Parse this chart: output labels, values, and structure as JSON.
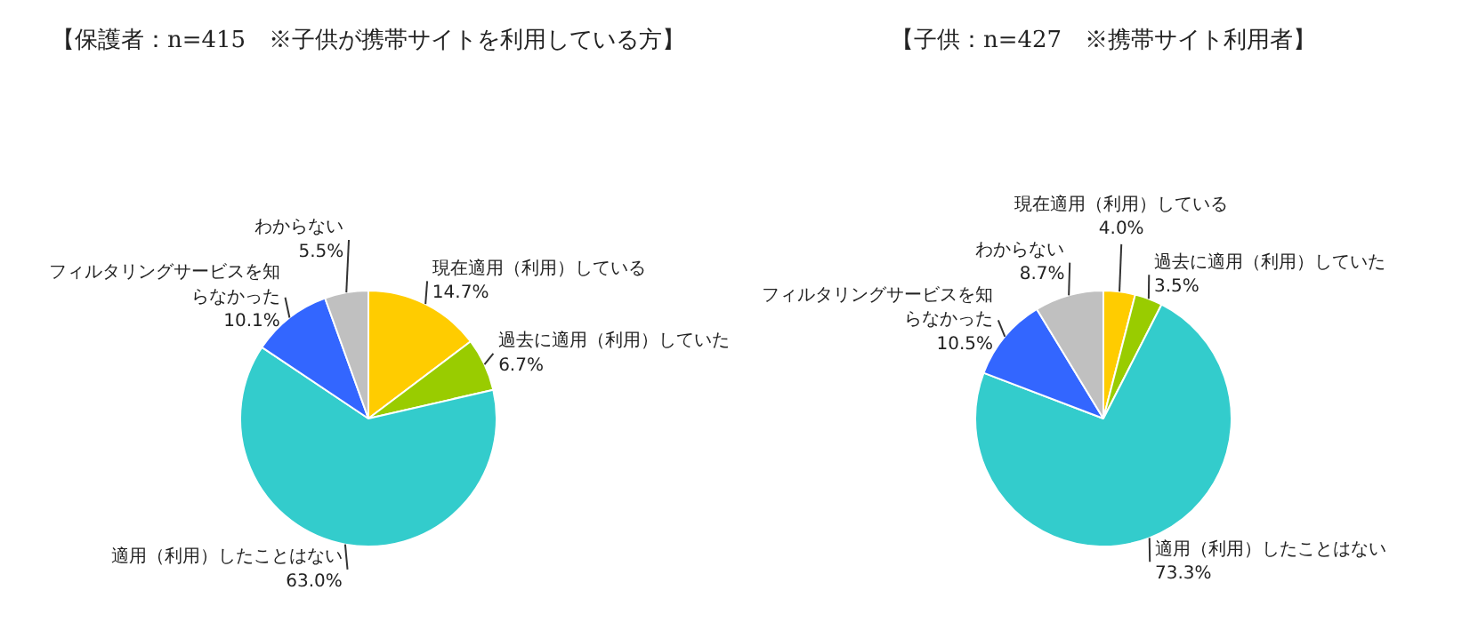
{
  "chart_data": [
    {
      "type": "pie",
      "title": "【保護者：n=415　※子供が携帯サイトを利用している方】",
      "categories": [
        "現在適用（利用）している",
        "過去に適用（利用）していた",
        "適用（利用）したことはない",
        "フィルタリングサービスを知らなかった",
        "わからない"
      ],
      "values": [
        14.7,
        6.7,
        63.0,
        10.1,
        5.5
      ],
      "colors": [
        "#ffcc00",
        "#99cc00",
        "#33cccc",
        "#3366ff",
        "#c0c0c0"
      ],
      "value_labels": [
        "14.7%",
        "6.7%",
        "63.0%",
        "10.1%",
        "5.5%"
      ]
    },
    {
      "type": "pie",
      "title": "【子供：n=427　※携帯サイト利用者】",
      "categories": [
        "現在適用（利用）している",
        "過去に適用（利用）していた",
        "適用（利用）したことはない",
        "フィルタリングサービスを知らなかった",
        "わからない"
      ],
      "values": [
        4.0,
        3.5,
        73.3,
        10.5,
        8.7
      ],
      "colors": [
        "#ffcc00",
        "#99cc00",
        "#33cccc",
        "#3366ff",
        "#c0c0c0"
      ],
      "value_labels": [
        "4.0%",
        "3.5%",
        "73.3%",
        "10.5%",
        "8.7%"
      ]
    }
  ]
}
